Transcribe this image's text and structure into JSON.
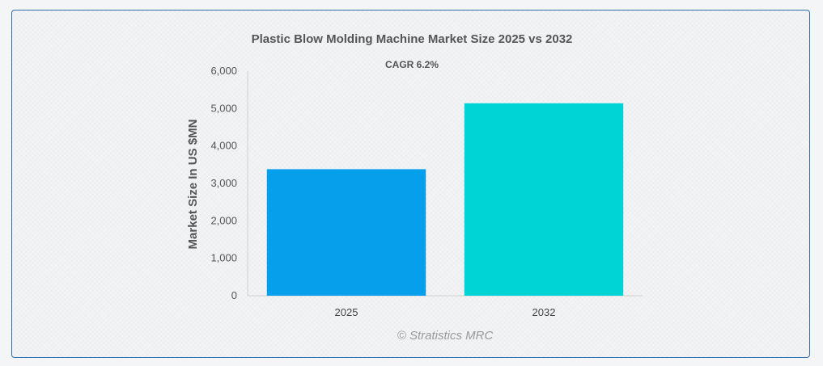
{
  "chart_data": {
    "type": "bar",
    "title": "Plastic Blow Molding Machine Market Size 2025 vs 2032",
    "subtitle": "CAGR 6.2%",
    "ylabel": "Market Size In US $MN",
    "xlabel": "",
    "categories": [
      "2025",
      "2032"
    ],
    "values": [
      3380,
      5140
    ],
    "colors": [
      "#069fec",
      "#00d4d4"
    ],
    "ylim": [
      0,
      6000
    ],
    "yticks": [
      0,
      1000,
      2000,
      3000,
      4000,
      5000,
      6000
    ],
    "ytick_labels": [
      "0",
      "1,000",
      "2,000",
      "3,000",
      "4,000",
      "5,000",
      "6,000"
    ],
    "grid": false,
    "legend": "none"
  },
  "credit": "© Stratistics MRC"
}
